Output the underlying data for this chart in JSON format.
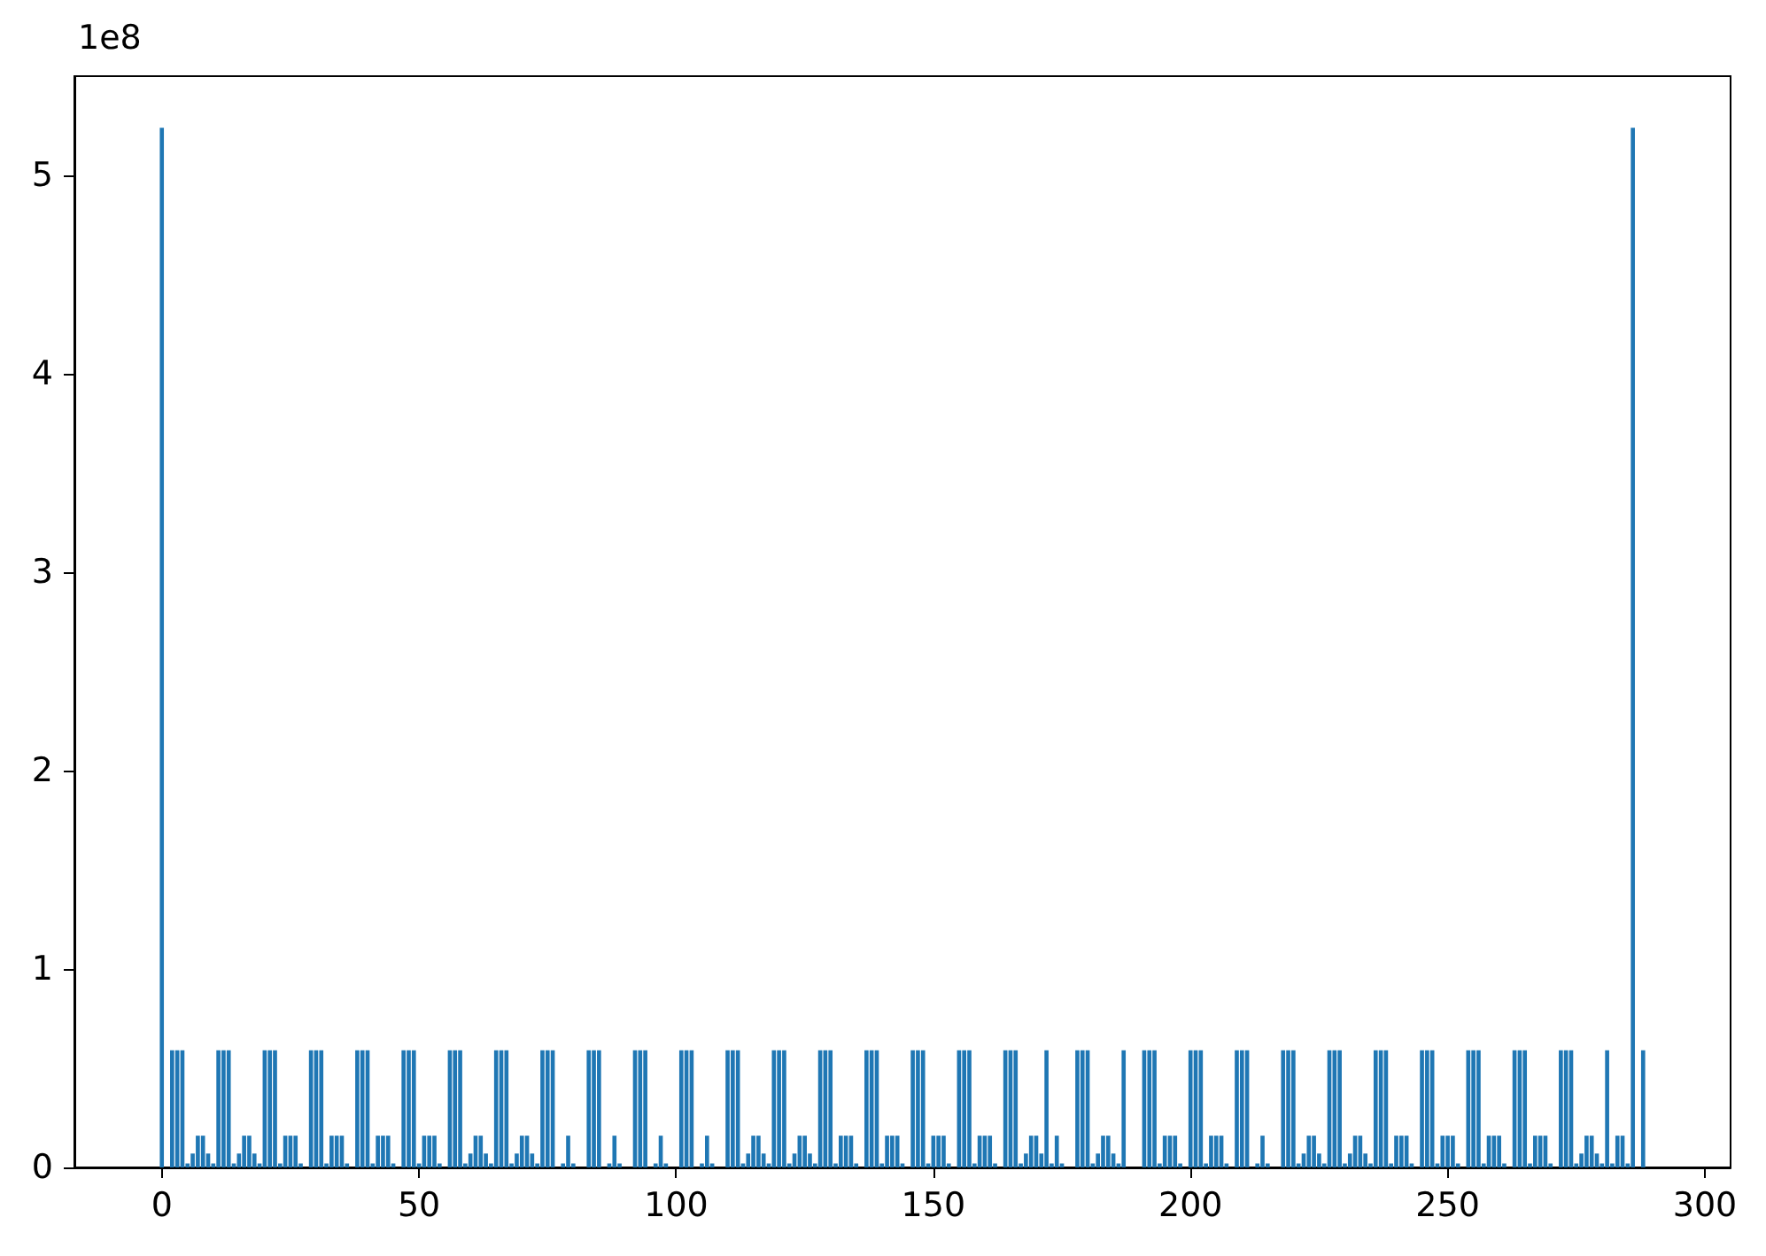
{
  "chart_data": {
    "type": "bar",
    "color": "#1f77b4",
    "annotations": [
      "1e8"
    ],
    "xlim": [
      -17,
      305
    ],
    "xticks": [
      0,
      50,
      100,
      150,
      200,
      250,
      300
    ],
    "ylim": [
      0,
      5.5
    ],
    "yticks": [
      0,
      1,
      2,
      3,
      4,
      5
    ],
    "x": [
      0,
      2,
      3,
      4,
      5,
      6,
      7,
      8,
      9,
      10,
      11,
      12,
      13,
      14,
      15,
      16,
      17,
      18,
      19,
      20,
      21,
      22,
      23,
      24,
      25,
      26,
      27,
      29,
      30,
      31,
      32,
      33,
      34,
      35,
      36,
      38,
      39,
      40,
      41,
      42,
      43,
      44,
      45,
      47,
      48,
      49,
      50,
      51,
      52,
      53,
      54,
      56,
      57,
      58,
      59,
      60,
      61,
      62,
      63,
      64,
      65,
      66,
      67,
      68,
      69,
      70,
      71,
      72,
      73,
      74,
      75,
      76,
      78,
      79,
      80,
      83,
      84,
      85,
      87,
      88,
      89,
      92,
      93,
      94,
      96,
      97,
      98,
      101,
      102,
      103,
      105,
      106,
      107,
      110,
      111,
      112,
      113,
      114,
      115,
      116,
      117,
      118,
      119,
      120,
      121,
      122,
      123,
      124,
      125,
      126,
      127,
      128,
      129,
      130,
      131,
      132,
      133,
      134,
      135,
      137,
      138,
      139,
      140,
      141,
      142,
      143,
      144,
      146,
      147,
      148,
      149,
      150,
      151,
      152,
      153,
      155,
      156,
      157,
      158,
      159,
      160,
      161,
      162,
      164,
      165,
      166,
      167,
      168,
      169,
      170,
      171,
      172,
      173,
      174,
      175,
      178,
      179,
      180,
      181,
      182,
      183,
      184,
      185,
      186,
      187,
      191,
      192,
      193,
      194,
      195,
      196,
      197,
      198,
      200,
      201,
      202,
      203,
      204,
      205,
      206,
      207,
      209,
      210,
      211,
      213,
      214,
      215,
      218,
      219,
      220,
      221,
      222,
      223,
      224,
      225,
      226,
      227,
      228,
      229,
      230,
      231,
      232,
      233,
      234,
      235,
      236,
      237,
      238,
      239,
      240,
      241,
      242,
      243,
      245,
      246,
      247,
      248,
      249,
      250,
      251,
      252,
      254,
      255,
      256,
      257,
      258,
      259,
      260,
      261,
      263,
      264,
      265,
      266,
      267,
      268,
      269,
      270,
      272,
      273,
      274,
      275,
      276,
      277,
      278,
      279,
      280,
      281,
      282,
      283,
      284,
      285,
      286,
      288
    ],
    "values": [
      5.24,
      0.59,
      0.59,
      0.59,
      0.02,
      0.07,
      0.16,
      0.16,
      0.07,
      0.02,
      0.59,
      0.59,
      0.59,
      0.02,
      0.07,
      0.16,
      0.16,
      0.07,
      0.02,
      0.59,
      0.59,
      0.59,
      0.02,
      0.16,
      0.16,
      0.16,
      0.02,
      0.59,
      0.59,
      0.59,
      0.02,
      0.16,
      0.16,
      0.16,
      0.02,
      0.59,
      0.59,
      0.59,
      0.02,
      0.16,
      0.16,
      0.16,
      0.02,
      0.59,
      0.59,
      0.59,
      0.02,
      0.16,
      0.16,
      0.16,
      0.02,
      0.59,
      0.59,
      0.59,
      0.02,
      0.07,
      0.16,
      0.16,
      0.07,
      0.02,
      0.59,
      0.59,
      0.59,
      0.02,
      0.07,
      0.16,
      0.16,
      0.07,
      0.02,
      0.59,
      0.59,
      0.59,
      0.02,
      0.16,
      0.02,
      0.59,
      0.59,
      0.59,
      0.02,
      0.16,
      0.02,
      0.59,
      0.59,
      0.59,
      0.02,
      0.16,
      0.02,
      0.59,
      0.59,
      0.59,
      0.02,
      0.16,
      0.02,
      0.59,
      0.59,
      0.59,
      0.02,
      0.07,
      0.16,
      0.16,
      0.07,
      0.02,
      0.59,
      0.59,
      0.59,
      0.02,
      0.07,
      0.16,
      0.16,
      0.07,
      0.02,
      0.59,
      0.59,
      0.59,
      0.02,
      0.16,
      0.16,
      0.16,
      0.02,
      0.59,
      0.59,
      0.59,
      0.02,
      0.16,
      0.16,
      0.16,
      0.02,
      0.59,
      0.59,
      0.59,
      0.02,
      0.16,
      0.16,
      0.16,
      0.02,
      0.59,
      0.59,
      0.59,
      0.02,
      0.16,
      0.16,
      0.16,
      0.02,
      0.59,
      0.59,
      0.59,
      0.02,
      0.07,
      0.16,
      0.16,
      0.07,
      0.59,
      0.02,
      0.16,
      0.02,
      0.59,
      0.59,
      0.59,
      0.02,
      0.07,
      0.16,
      0.16,
      0.07,
      0.02,
      0.59,
      0.59,
      0.59,
      0.59,
      0.02,
      0.16,
      0.16,
      0.16,
      0.02,
      0.59,
      0.59,
      0.59,
      0.02,
      0.16,
      0.16,
      0.16,
      0.02,
      0.59,
      0.59,
      0.59,
      0.02,
      0.16,
      0.02,
      0.59,
      0.59,
      0.59,
      0.02,
      0.07,
      0.16,
      0.16,
      0.07,
      0.02,
      0.59,
      0.59,
      0.59,
      0.02,
      0.07,
      0.16,
      0.16,
      0.07,
      0.02,
      0.59,
      0.59,
      0.59,
      0.02,
      0.16,
      0.16,
      0.16,
      0.02,
      0.59,
      0.59,
      0.59,
      0.02,
      0.16,
      0.16,
      0.16,
      0.02,
      0.59,
      0.59,
      0.59,
      0.02,
      0.16,
      0.16,
      0.16,
      0.02,
      0.59,
      0.59,
      0.59,
      0.02,
      0.16,
      0.16,
      0.16,
      0.02,
      0.59,
      0.59,
      0.59,
      0.02,
      0.07,
      0.16,
      0.16,
      0.07,
      0.02,
      0.59,
      0.02,
      0.16,
      0.16,
      0.02,
      5.24,
      0.59
    ]
  }
}
